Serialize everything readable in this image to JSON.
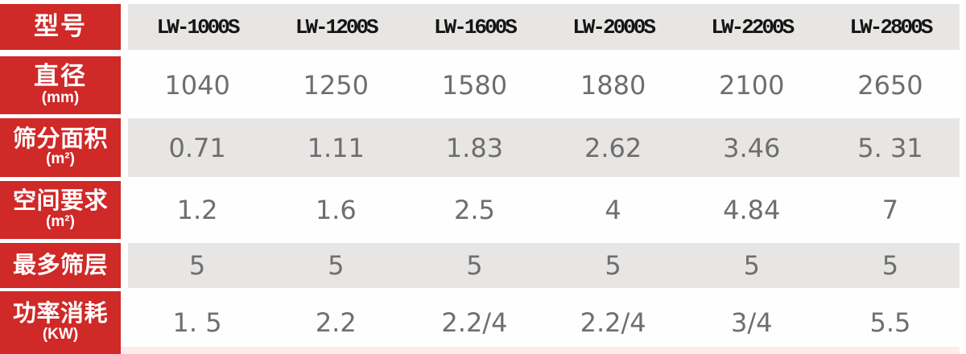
{
  "table": {
    "header_row": {
      "label": "型号",
      "models": [
        "LW-1000S",
        "LW-1200S",
        "LW-1600S",
        "LW-2000S",
        "LW-2200S",
        "LW-2800S"
      ]
    },
    "rows": [
      {
        "label": "直径",
        "unit": "(mm)",
        "values": [
          "1040",
          "1250",
          "1580",
          "1880",
          "2100",
          "2650"
        ]
      },
      {
        "label": "筛分面积",
        "unit": "(m²)",
        "values": [
          "0.71",
          "1.11",
          "1.83",
          "2.62",
          "3.46",
          "5. 31"
        ]
      },
      {
        "label": "空间要求",
        "unit": "(m²)",
        "values": [
          "1.2",
          "1.6",
          "2.5",
          "4",
          "4.84",
          "7"
        ]
      },
      {
        "label": "最多筛层",
        "unit": "",
        "values": [
          "5",
          "5",
          "5",
          "5",
          "5",
          "5"
        ]
      },
      {
        "label": "功率消耗",
        "unit": "(KW)",
        "values": [
          "1. 5",
          "2.2",
          "2.2/4",
          "2.2/4",
          "3/4",
          "5.5"
        ]
      }
    ],
    "colors": {
      "header_red": "#cf2928",
      "band_grey": "#e8e6e4",
      "row_white": "#fefefe",
      "model_text": "#151515",
      "value_text": "#6e6e6e",
      "label_text": "#ffffff",
      "bottom_strip_pink": "#fcecea"
    }
  },
  "chart_data": {
    "type": "table",
    "title": "",
    "row_headers": [
      "型号",
      "直径 (mm)",
      "筛分面积 (m²)",
      "空间要求 (m²)",
      "最多筛层",
      "功率消耗 (KW)"
    ],
    "columns": [
      "LW-1000S",
      "LW-1200S",
      "LW-1600S",
      "LW-2000S",
      "LW-2200S",
      "LW-2800S"
    ],
    "rows": [
      [
        "1040",
        "1250",
        "1580",
        "1880",
        "2100",
        "2650"
      ],
      [
        "0.71",
        "1.11",
        "1.83",
        "2.62",
        "3.46",
        "5.31"
      ],
      [
        "1.2",
        "1.6",
        "2.5",
        "4",
        "4.84",
        "7"
      ],
      [
        "5",
        "5",
        "5",
        "5",
        "5",
        "5"
      ],
      [
        "1.5",
        "2.2",
        "2.2/4",
        "2.2/4",
        "3/4",
        "5.5"
      ]
    ]
  }
}
